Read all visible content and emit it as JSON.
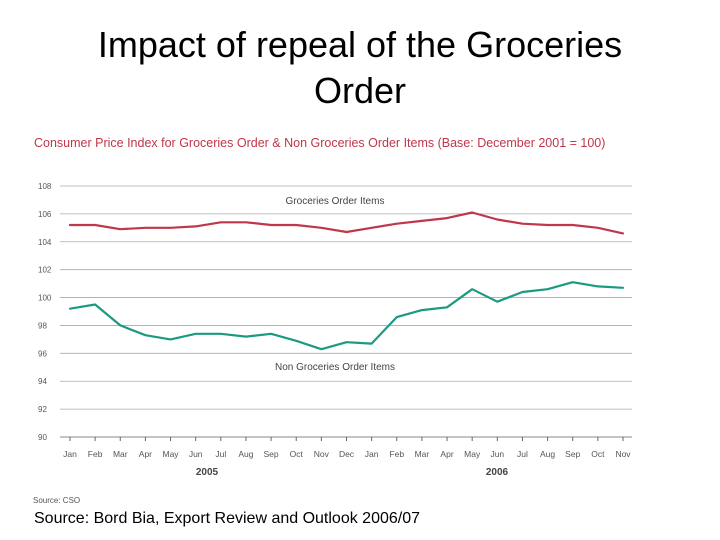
{
  "slide": {
    "title_line1": "Impact of repeal of the Groceries",
    "title_line2": "Order",
    "source": "Source: Bord Bia, Export Review and Outlook 2006/07"
  },
  "chart_data": {
    "type": "line",
    "title": "Consumer Price Index for Groceries Order & Non Groceries Order Items (Base: December 2001 = 100)",
    "xlabel": "",
    "ylabel": "",
    "ylim": [
      90,
      108
    ],
    "yticks": [
      90,
      92,
      94,
      96,
      98,
      100,
      102,
      104,
      106,
      108
    ],
    "grid": true,
    "categories": [
      "Jan",
      "Feb",
      "Mar",
      "Apr",
      "May",
      "Jun",
      "Jul",
      "Aug",
      "Sep",
      "Oct",
      "Nov",
      "Dec",
      "Jan",
      "Feb",
      "Mar",
      "Apr",
      "May",
      "Jun",
      "Jul",
      "Aug",
      "Sep",
      "Oct",
      "Nov"
    ],
    "year_labels": [
      "2005",
      "2006"
    ],
    "source_note": "Source: CSO",
    "series": [
      {
        "name": "Groceries Order Items",
        "color": "#c0364a",
        "values": [
          105.2,
          105.2,
          104.9,
          105.0,
          105.0,
          105.1,
          105.4,
          105.4,
          105.2,
          105.2,
          105.0,
          104.7,
          105.0,
          105.3,
          105.5,
          105.7,
          106.1,
          105.6,
          105.3,
          105.2,
          105.2,
          105.0,
          104.6
        ]
      },
      {
        "name": "Non Groceries Order Items",
        "color": "#1a9a82",
        "values": [
          99.2,
          99.5,
          98.0,
          97.3,
          97.0,
          97.4,
          97.4,
          97.2,
          97.4,
          96.9,
          96.3,
          96.8,
          96.7,
          98.6,
          99.1,
          99.3,
          100.6,
          99.7,
          100.4,
          100.6,
          101.1,
          100.8,
          100.7
        ]
      }
    ]
  }
}
